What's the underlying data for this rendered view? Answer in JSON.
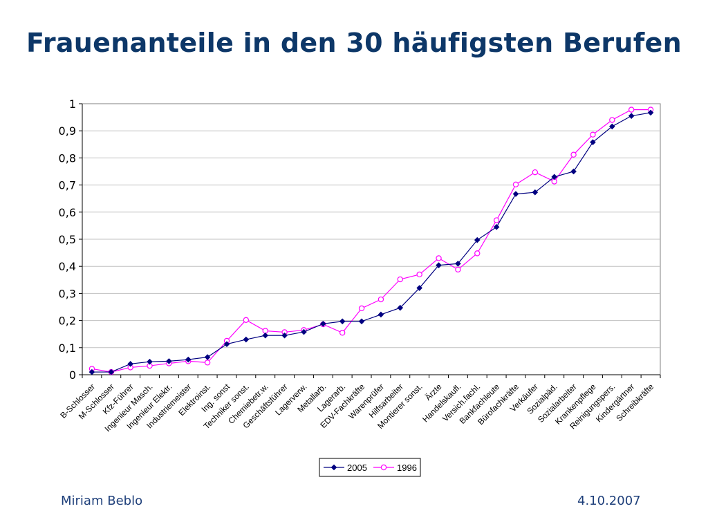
{
  "slide": {
    "title": "Frauenanteile in den 30 häufigsten Berufen",
    "footer_left": "Miriam Beblo",
    "footer_right": "4.10.2007"
  },
  "colors": {
    "title": "#0d3768",
    "series_2005": "#000080",
    "series_1996": "#ff00ff",
    "grid": "#c0c0c0",
    "plot_border": "#808080"
  },
  "chart_data": {
    "type": "line",
    "title": "",
    "xlabel": "",
    "ylabel": "",
    "ylim": [
      0,
      1
    ],
    "yticks": [
      "0",
      "0,1",
      "0,2",
      "0,3",
      "0,4",
      "0,5",
      "0,6",
      "0,7",
      "0,8",
      "0,9",
      "1"
    ],
    "grid": true,
    "legend_position": "bottom",
    "categories": [
      "B-Schlosser",
      "M-Schlosser",
      "Kfz-Führer",
      "Ingenieur Masch.",
      "Ingenieur Elektr.",
      "Industriemeister",
      "Elektroinst.",
      "Ing. sonst",
      "Techniker sonst.",
      "Chemiebetr.w.",
      "Geschäftsführer",
      "Lagerverw.",
      "Metallarb.",
      "Lagerarb.",
      "EDV-Fachkräfte",
      "Warenprüfer",
      "Hilfsarbeiter",
      "Montierer sonst.",
      "Ärzte",
      "Handelskaufl.",
      "Versich.fachl.",
      "Bankfachleute",
      "Bürofachkräfte",
      "Verkäufer",
      "Sozialpäd.",
      "Sozialarbeiter",
      "Krankenpflege",
      "Reinigungspers.",
      "Kindergärtner",
      "Schreibkräfte"
    ],
    "series": [
      {
        "name": "2005",
        "marker": "diamond",
        "values": [
          0.01,
          0.01,
          0.04,
          0.048,
          0.05,
          0.056,
          0.065,
          0.113,
          0.13,
          0.145,
          0.145,
          0.158,
          0.188,
          0.197,
          0.197,
          0.222,
          0.247,
          0.32,
          0.404,
          0.41,
          0.497,
          0.545,
          0.667,
          0.673,
          0.73,
          0.75,
          0.858,
          0.916,
          0.955,
          0.967
        ]
      },
      {
        "name": "1996",
        "marker": "circle",
        "values": [
          0.022,
          0.01,
          0.027,
          0.033,
          0.042,
          0.05,
          0.045,
          0.125,
          0.202,
          0.162,
          0.157,
          0.165,
          0.186,
          0.155,
          0.245,
          0.278,
          0.352,
          0.37,
          0.43,
          0.388,
          0.448,
          0.57,
          0.702,
          0.747,
          0.713,
          0.812,
          0.886,
          0.94,
          0.978,
          0.978
        ]
      }
    ]
  }
}
